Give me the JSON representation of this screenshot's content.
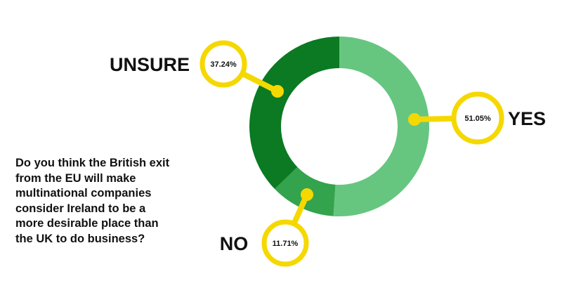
{
  "chart_data": {
    "type": "pie",
    "style": "donut",
    "categories": [
      "YES",
      "NO",
      "UNSURE"
    ],
    "values": [
      51.05,
      11.71,
      37.24
    ],
    "value_labels": [
      "51.05%",
      "11.71%",
      "37.24%"
    ],
    "colors": [
      "#66c67f",
      "#34a34e",
      "#0b7a22"
    ],
    "callout_color": "#f5d800",
    "start_angle_deg": 0,
    "direction": "clockwise",
    "title_lines": [
      "Do you think the British exit",
      "from the EU will make",
      "multinational companies",
      "consider Ireland to be a",
      "more desirable place than",
      "the UK to do business?"
    ]
  }
}
